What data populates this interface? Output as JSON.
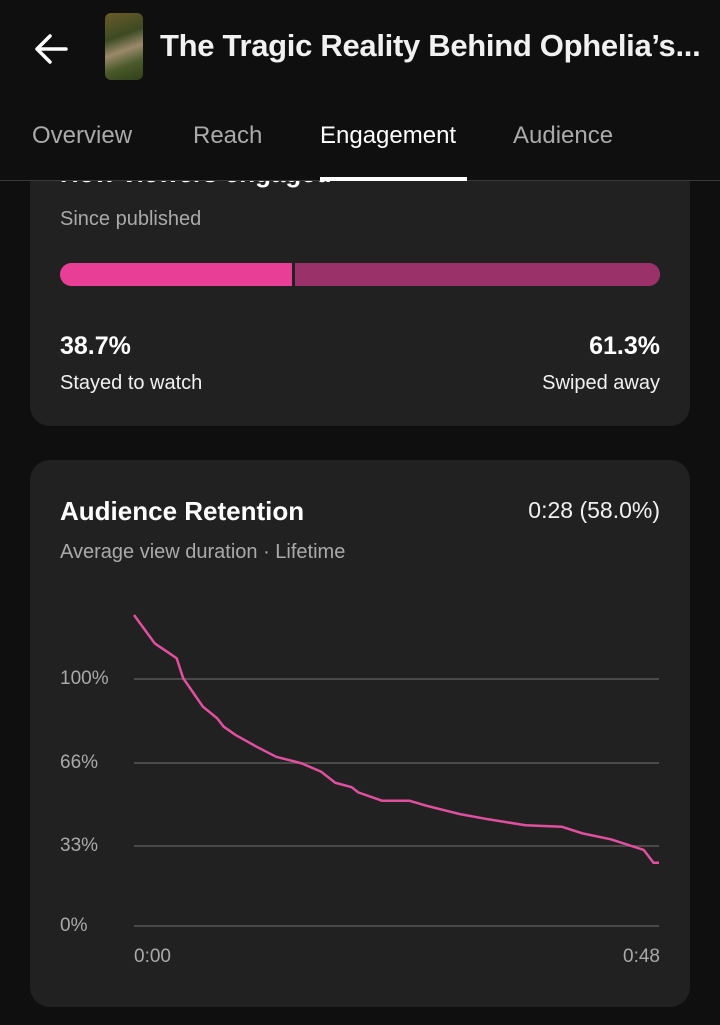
{
  "header": {
    "back_icon": "arrow-left-icon",
    "title": "The Tragic Reality Behind Ophelia’s...",
    "tabs": [
      {
        "label": "Overview",
        "active": false
      },
      {
        "label": "Reach",
        "active": false
      },
      {
        "label": "Engagement",
        "active": true
      },
      {
        "label": "Audience",
        "active": false
      }
    ]
  },
  "engagement_card": {
    "heading": "How viewers engaged",
    "subtitle": "Since published",
    "stayed_value": "38.7%",
    "stayed_label": "Stayed to watch",
    "swiped_value": "61.3%",
    "swiped_label": "Swiped away",
    "stayed_fraction": 38.7,
    "colors": {
      "stayed": "#e83e96",
      "swiped": "#9b3169"
    }
  },
  "retention_card": {
    "title": "Audience Retention",
    "summary": "0:28 (58.0%)",
    "subtitle": "Average view duration · Lifetime"
  },
  "chart_data": {
    "type": "line",
    "title": "",
    "xlabel": "",
    "ylabel": "",
    "y_ticks": [
      "100%",
      "66%",
      "33%",
      "0%"
    ],
    "y_tick_values": [
      100,
      66,
      33,
      0
    ],
    "x_ticks": [
      "0:00",
      "0:48"
    ],
    "xlim": [
      0,
      48
    ],
    "ylim": [
      0,
      126
    ],
    "grid": true,
    "line_color": "#e0509e",
    "series": [
      {
        "x": [
          0,
          1.9,
          3.0,
          3.9,
          4.5,
          6.3,
          7.6,
          8.2,
          9.3,
          11.2,
          13.0,
          15.3,
          17.1,
          18.4,
          19.9,
          20.5,
          22.7,
          25.2,
          26.8,
          29.8,
          32.4,
          35.8,
          39.1,
          41.0,
          43.6,
          46.6,
          47.5,
          48
        ],
        "y": [
          125.9,
          114.4,
          111.1,
          108.4,
          100.3,
          88.8,
          84.1,
          80.7,
          77.3,
          72.6,
          68.5,
          65.9,
          62.5,
          58.0,
          56.2,
          54.1,
          50.7,
          50.7,
          48.6,
          45.3,
          43.2,
          40.8,
          40.2,
          37.5,
          35.1,
          30.8,
          25.6,
          25.6
        ]
      }
    ]
  }
}
